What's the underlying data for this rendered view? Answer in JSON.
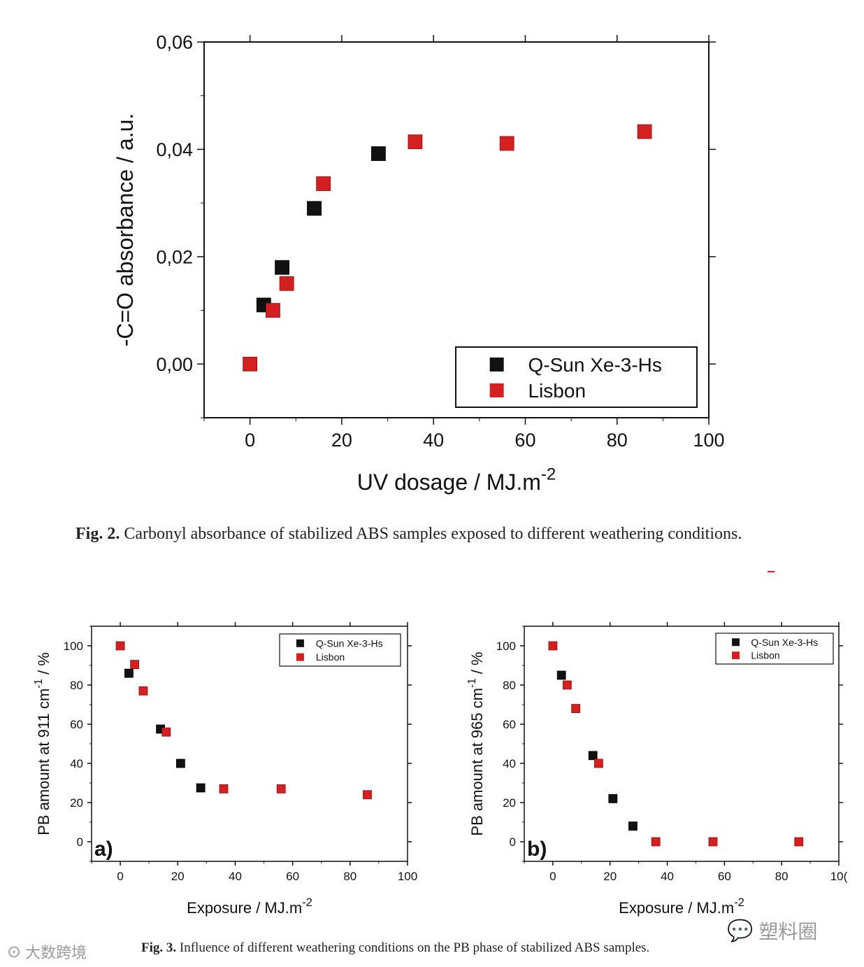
{
  "chart_data": [
    {
      "type": "scatter",
      "xlabel": "UV dosage / MJ.m",
      "xlabel_sup": "-2",
      "ylabel": "-C=O absorbance / a.u.",
      "xlim": [
        -10,
        100
      ],
      "ylim": [
        -0.01,
        0.06
      ],
      "x_ticks": [
        "0",
        "20",
        "40",
        "60",
        "80",
        "100"
      ],
      "y_ticks": [
        "0,00",
        "0,02",
        "0,04",
        "0,06"
      ],
      "legend": "bottom-right",
      "series": [
        {
          "name": "Q-Sun Xe-3-Hs",
          "color": "#111111",
          "x": [
            3,
            7,
            14,
            28
          ],
          "y": [
            0.011,
            0.018,
            0.029,
            0.0392
          ]
        },
        {
          "name": "Lisbon",
          "color": "#d42020",
          "x": [
            0,
            5,
            8,
            16,
            36,
            56,
            86
          ],
          "y": [
            0.0,
            0.01,
            0.015,
            0.0336,
            0.0414,
            0.0411,
            0.0433
          ]
        }
      ]
    },
    {
      "type": "scatter",
      "panel_label": "a)",
      "xlabel": "Exposure / MJ.m",
      "xlabel_sup": "-2",
      "ylabel": "PB amount at 911 cm",
      "ylabel_sup": "-1",
      "ylabel_tail": " / %",
      "xlim": [
        -10,
        100
      ],
      "ylim": [
        -10,
        110
      ],
      "x_ticks": [
        "0",
        "20",
        "40",
        "60",
        "80",
        "100"
      ],
      "y_ticks": [
        "0",
        "20",
        "40",
        "60",
        "80",
        "100"
      ],
      "legend": "top-right",
      "series": [
        {
          "name": "Q-Sun Xe-3-Hs",
          "color": "#111111",
          "x": [
            3,
            14,
            21,
            28
          ],
          "y": [
            86,
            57.5,
            40,
            27.5
          ]
        },
        {
          "name": "Lisbon",
          "color": "#d42020",
          "x": [
            0,
            5,
            8,
            16,
            36,
            56,
            86
          ],
          "y": [
            100,
            90.5,
            77,
            56,
            27,
            27,
            24
          ]
        }
      ]
    },
    {
      "type": "scatter",
      "panel_label": "b)",
      "xlabel": "Exposure / MJ.m",
      "xlabel_sup": "-2",
      "ylabel": "PB amount at 965 cm",
      "ylabel_sup": "-1",
      "ylabel_tail": " / %",
      "xlim": [
        -10,
        100
      ],
      "ylim": [
        -10,
        110
      ],
      "x_ticks": [
        "0",
        "20",
        "40",
        "60",
        "80",
        "10("
      ],
      "y_ticks": [
        "0",
        "20",
        "40",
        "60",
        "80",
        "100"
      ],
      "legend": "top-right",
      "series": [
        {
          "name": "Q-Sun Xe-3-Hs",
          "color": "#111111",
          "x": [
            3,
            14,
            21,
            28
          ],
          "y": [
            85,
            44,
            22,
            8
          ]
        },
        {
          "name": "Lisbon",
          "color": "#d42020",
          "x": [
            0,
            5,
            8,
            16,
            36,
            56,
            86
          ],
          "y": [
            100,
            80,
            68,
            40,
            0,
            0,
            0
          ]
        }
      ]
    }
  ],
  "captions": {
    "fig2_label": "Fig. 2.",
    "fig2_text": "Carbonyl absorbance of stabilized ABS samples exposed to different weathering conditions.",
    "fig3_label": "Fig. 3.",
    "fig3_text": "Influence of different weathering conditions on the PB phase of stabilized ABS samples."
  },
  "watermarks": {
    "left": "大数跨境",
    "right": "塑料圈"
  }
}
